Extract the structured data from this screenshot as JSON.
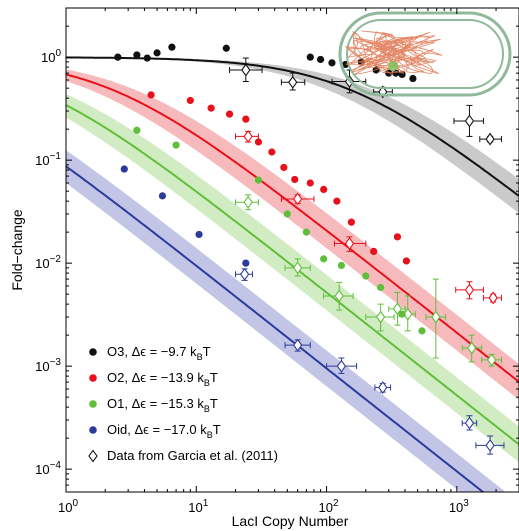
{
  "chart_data": {
    "type": "scatter",
    "xscale": "log",
    "yscale": "log",
    "xlim": [
      1,
      3000
    ],
    "ylim": [
      6e-05,
      3
    ],
    "xlabel": "LacI Copy Number",
    "ylabel": "Fold−change",
    "x_ticks": [
      {
        "value": 1,
        "base": "10",
        "exp": "0"
      },
      {
        "value": 10,
        "base": "10",
        "exp": "1"
      },
      {
        "value": 100,
        "base": "10",
        "exp": "2"
      },
      {
        "value": 1000,
        "base": "10",
        "exp": "3"
      }
    ],
    "y_ticks": [
      {
        "value": 0.0001,
        "base": "10",
        "exp": "−4"
      },
      {
        "value": 0.001,
        "base": "10",
        "exp": "−3"
      },
      {
        "value": 0.01,
        "base": "10",
        "exp": "−2"
      },
      {
        "value": 0.1,
        "base": "10",
        "exp": "−1"
      },
      {
        "value": 1,
        "base": "10",
        "exp": "0"
      }
    ],
    "series": [
      {
        "name": "O3",
        "legend_prefix": "O3, Δϵ = −9.7 k",
        "legend_sub": "B",
        "legend_suffix": "T",
        "color": "#111111",
        "band_color": "#b8b8b8",
        "delta_epsilon": -9.7,
        "points": [
          [
            2.5,
            1.0
          ],
          [
            3.5,
            1.05
          ],
          [
            4.2,
            0.98
          ],
          [
            5.0,
            1.1
          ],
          [
            6.5,
            1.25
          ],
          [
            17,
            1.22
          ],
          [
            75,
            1.0
          ],
          [
            90,
            0.95
          ],
          [
            110,
            0.88
          ],
          [
            140,
            0.85
          ],
          [
            185,
            0.9
          ],
          [
            240,
            0.75
          ],
          [
            300,
            0.7
          ],
          [
            340,
            0.7
          ],
          [
            380,
            0.68
          ],
          [
            460,
            0.62
          ]
        ],
        "garcia": [
          {
            "x": 24,
            "y": 0.75,
            "xerr": [
              18,
              32
            ],
            "yerr": [
              0.58,
              0.98
            ]
          },
          {
            "x": 55,
            "y": 0.57,
            "xerr": [
              45,
              68
            ],
            "yerr": [
              0.48,
              0.7
            ]
          },
          {
            "x": 150,
            "y": 0.58,
            "xerr": [
              110,
              200
            ],
            "yerr": [
              0.45,
              0.75
            ]
          },
          {
            "x": 270,
            "y": 0.46,
            "xerr": [
              230,
              320
            ],
            "yerr": [
              0.42,
              0.51
            ]
          },
          {
            "x": 1250,
            "y": 0.24,
            "xerr": [
              950,
              1600
            ],
            "yerr": [
              0.17,
              0.34
            ]
          },
          {
            "x": 1800,
            "y": 0.16,
            "xerr": [
              1500,
              2200
            ],
            "yerr": [
              0.15,
              0.17
            ]
          }
        ]
      },
      {
        "name": "O2",
        "legend_prefix": "O2, Δϵ = −13.9 k",
        "legend_sub": "B",
        "legend_suffix": "T",
        "color": "#e8101a",
        "band_color": "#f4a3a6",
        "delta_epsilon": -13.9,
        "points": [
          [
            4.5,
            0.43
          ],
          [
            9.0,
            0.38
          ],
          [
            13,
            0.32
          ],
          [
            18,
            0.28
          ],
          [
            24,
            0.25
          ],
          [
            30,
            0.15
          ],
          [
            38,
            0.12
          ],
          [
            47,
            0.085
          ],
          [
            57,
            0.065
          ],
          [
            75,
            0.06
          ],
          [
            95,
            0.052
          ],
          [
            120,
            0.04
          ],
          [
            155,
            0.025
          ],
          [
            230,
            0.013
          ],
          [
            350,
            0.018
          ],
          [
            410,
            0.0105
          ]
        ],
        "garcia": [
          {
            "x": 25,
            "y": 0.17,
            "xerr": [
              20,
              30
            ],
            "yerr": [
              0.15,
              0.19
            ]
          },
          {
            "x": 60,
            "y": 0.042,
            "xerr": [
              45,
              80
            ],
            "yerr": [
              0.038,
              0.046
            ]
          },
          {
            "x": 150,
            "y": 0.0155,
            "xerr": [
              115,
              200
            ],
            "yerr": [
              0.013,
              0.018
            ]
          },
          {
            "x": 1250,
            "y": 0.0055,
            "xerr": [
              980,
              1600
            ],
            "yerr": [
              0.0045,
              0.0066
            ]
          },
          {
            "x": 1900,
            "y": 0.0046,
            "xerr": [
              1600,
              2200
            ],
            "yerr": [
              0.0042,
              0.005
            ]
          }
        ]
      },
      {
        "name": "O1",
        "legend_prefix": "O1, Δϵ = −15.3 k",
        "legend_sub": "B",
        "legend_suffix": "T",
        "color": "#5fbf3a",
        "band_color": "#c2e5ae",
        "delta_epsilon": -15.3,
        "points": [
          [
            3.5,
            0.195
          ],
          [
            7.0,
            0.14
          ],
          [
            30,
            0.064
          ],
          [
            50,
            0.03
          ],
          [
            70,
            0.02
          ],
          [
            95,
            0.011
          ],
          [
            130,
            0.0095
          ],
          [
            200,
            0.0075
          ],
          [
            260,
            0.0058
          ],
          [
            380,
            0.0032
          ],
          [
            540,
            0.0022
          ]
        ],
        "garcia": [
          {
            "x": 25,
            "y": 0.039,
            "xerr": [
              20,
              30
            ],
            "yerr": [
              0.033,
              0.046
            ]
          },
          {
            "x": 60,
            "y": 0.009,
            "xerr": [
              48,
              75
            ],
            "yerr": [
              0.0075,
              0.011
            ]
          },
          {
            "x": 125,
            "y": 0.0048,
            "xerr": [
              95,
              160
            ],
            "yerr": [
              0.0035,
              0.0065
            ]
          },
          {
            "x": 260,
            "y": 0.003,
            "xerr": [
              200,
              330
            ],
            "yerr": [
              0.0022,
              0.004
            ]
          },
          {
            "x": 350,
            "y": 0.0036,
            "xerr": [
              300,
              400
            ],
            "yerr": [
              0.0025,
              0.0052
            ]
          },
          {
            "x": 420,
            "y": 0.0032,
            "xerr": [
              360,
              480
            ],
            "yerr": [
              0.0022,
              0.0048
            ]
          },
          {
            "x": 690,
            "y": 0.003,
            "xerr": [
              580,
              820
            ],
            "yerr": [
              0.0012,
              0.007
            ]
          },
          {
            "x": 1300,
            "y": 0.0015,
            "xerr": [
              1100,
              1550
            ],
            "yerr": [
              0.0011,
              0.002
            ]
          },
          {
            "x": 1850,
            "y": 0.00115,
            "xerr": [
              1550,
              2200
            ],
            "yerr": [
              0.001,
              0.0013
            ]
          }
        ]
      },
      {
        "name": "Oid",
        "legend_prefix": "Oid, Δϵ = −17.0 k",
        "legend_sub": "B",
        "legend_suffix": "T",
        "color": "#2c3a9c",
        "band_color": "#aeb2dc",
        "delta_epsilon": -17.0,
        "points": [
          [
            2.8,
            0.082
          ],
          [
            5.5,
            0.045
          ],
          [
            10.5,
            0.019
          ],
          [
            24,
            0.01
          ]
        ],
        "garcia": [
          {
            "x": 23.5,
            "y": 0.0078,
            "xerr": [
              20,
              27
            ],
            "yerr": [
              0.0068,
              0.0088
            ]
          },
          {
            "x": 60,
            "y": 0.0016,
            "xerr": [
              48,
              75
            ],
            "yerr": [
              0.0014,
              0.0018
            ]
          },
          {
            "x": 130,
            "y": 0.001,
            "xerr": [
              100,
              170
            ],
            "yerr": [
              0.00085,
              0.0012
            ]
          },
          {
            "x": 270,
            "y": 0.00062,
            "xerr": [
              235,
              310
            ],
            "yerr": [
              0.00056,
              0.00068
            ]
          },
          {
            "x": 1250,
            "y": 0.00028,
            "xerr": [
              1100,
              1420
            ],
            "yerr": [
              0.00024,
              0.00033
            ]
          },
          {
            "x": 1800,
            "y": 0.00017,
            "xerr": [
              1400,
              2300
            ],
            "yerr": [
              0.00014,
              0.00021
            ]
          }
        ]
      }
    ],
    "garcia_legend": "Data from Garcia et al. (2011)",
    "legend_location": "lower-left",
    "inset": "cell-diagram-top-right"
  }
}
